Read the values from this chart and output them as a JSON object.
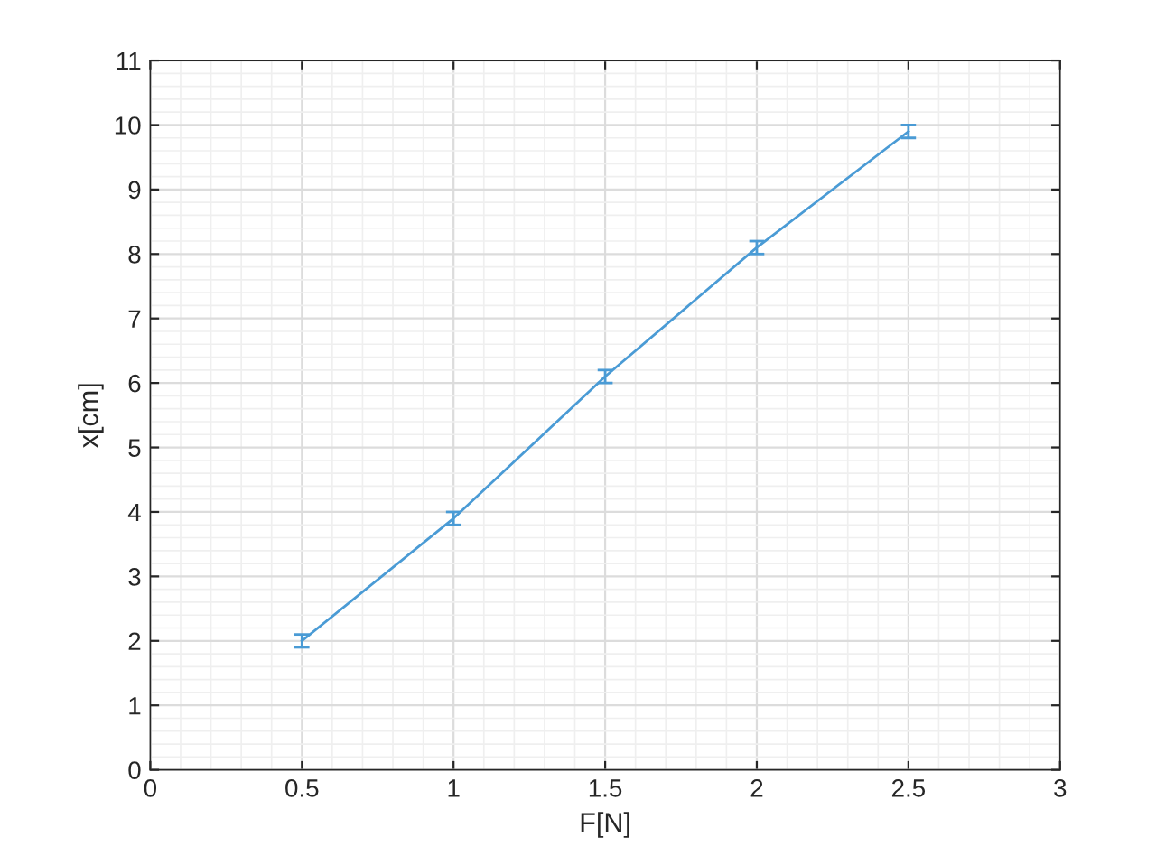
{
  "chart_data": {
    "type": "line",
    "xlabel": "F[N]",
    "ylabel": "x[cm]",
    "x": [
      0.5,
      1,
      1.5,
      2,
      2.5
    ],
    "series": [
      {
        "color": "#4a9bd5",
        "values": [
          2.0,
          3.9,
          6.1,
          8.1,
          9.9
        ],
        "errors": [
          0.1,
          0.1,
          0.1,
          0.1,
          0.1
        ]
      }
    ],
    "xlim": [
      0,
      3
    ],
    "xticks": [
      0,
      0.5,
      1,
      1.5,
      2,
      2.5,
      3
    ],
    "ylim": [
      0,
      11
    ],
    "yticks": [
      0,
      1,
      2,
      3,
      4,
      5,
      6,
      7,
      8,
      9,
      10,
      11
    ],
    "grid": true,
    "marker": "none",
    "line_style": "solid"
  }
}
